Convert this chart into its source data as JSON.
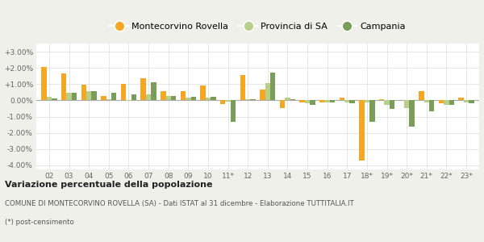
{
  "categories": [
    "02",
    "03",
    "04",
    "05",
    "06",
    "07",
    "08",
    "09",
    "10",
    "11*",
    "12",
    "13",
    "14",
    "15",
    "16",
    "17",
    "18*",
    "19*",
    "20*",
    "21*",
    "22*",
    "23*"
  ],
  "montecorvino": [
    2.05,
    1.65,
    0.95,
    0.25,
    1.0,
    1.35,
    0.55,
    0.55,
    0.9,
    -0.25,
    1.55,
    0.65,
    -0.45,
    -0.15,
    -0.15,
    0.15,
    -3.7,
    0.05,
    0.0,
    0.55,
    -0.2,
    0.15
  ],
  "provincia_sa": [
    0.2,
    0.45,
    0.55,
    0.05,
    -0.05,
    0.35,
    0.25,
    0.15,
    0.15,
    -0.1,
    0.05,
    1.05,
    0.15,
    -0.2,
    -0.15,
    -0.15,
    -0.15,
    -0.3,
    -0.45,
    -0.15,
    -0.28,
    -0.15
  ],
  "campania": [
    0.12,
    0.45,
    0.55,
    0.45,
    0.35,
    1.1,
    0.28,
    0.2,
    0.2,
    -1.3,
    0.05,
    1.7,
    0.05,
    -0.3,
    -0.15,
    -0.2,
    -1.3,
    -0.5,
    -1.6,
    -0.65,
    -0.3,
    -0.2
  ],
  "color_montecorvino": "#f5a623",
  "color_provincia": "#b8cf8a",
  "color_campania": "#7a9e5a",
  "ylim_min": -4.25,
  "ylim_max": 3.5,
  "yticks": [
    -4.0,
    -3.0,
    -2.0,
    -1.0,
    0.0,
    1.0,
    2.0,
    3.0
  ],
  "ytick_labels": [
    "-4.00%",
    "-3.00%",
    "-2.00%",
    "-1.00%",
    "0.00%",
    "+1.00%",
    "+2.00%",
    "+3.00%"
  ],
  "title": "Variazione percentuale della popolazione",
  "subtitle": "COMUNE DI MONTECORVINO ROVELLA (SA) - Dati ISTAT al 31 dicembre - Elaborazione TUTTITALIA.IT",
  "footnote": "(*) post-censimento",
  "legend_labels": [
    "Montecorvino Rovella",
    "Provincia di SA",
    "Campania"
  ],
  "bg_color": "#f0f0eb",
  "plot_bg_color": "#ffffff",
  "bar_width": 0.26
}
